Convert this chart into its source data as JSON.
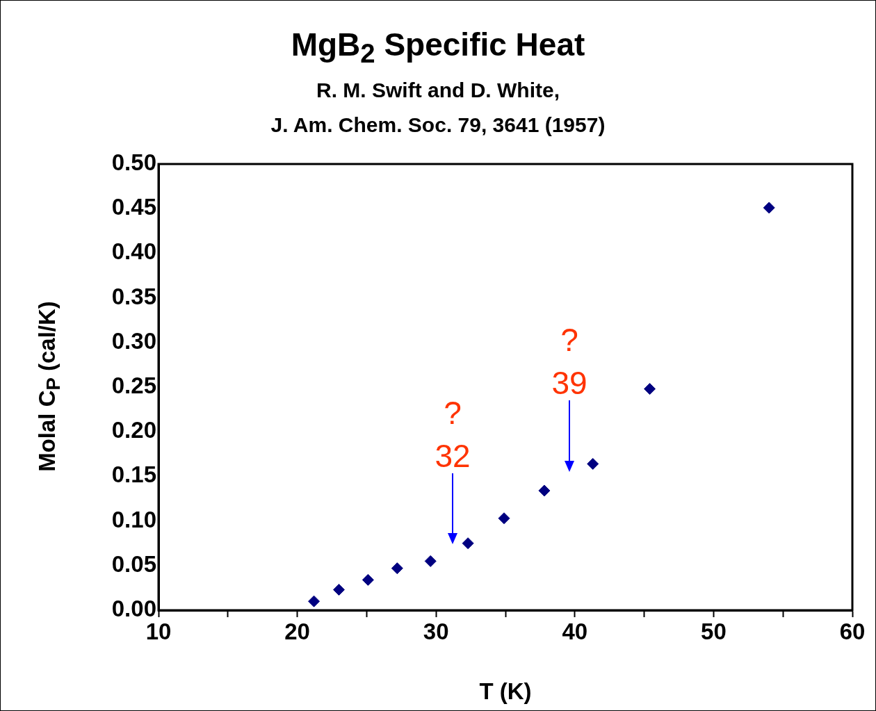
{
  "chart_data": {
    "type": "scatter",
    "title": "MgB$_{2}$ Specific Heat",
    "subtitle": "R. M. Swift and D. White,\nJ. Am. Chem. Soc. 79, 3641 (1957)",
    "xlabel": "T (K)",
    "ylabel": "Molal C$_{P}$ (cal/K)",
    "x": [
      21.2,
      23.0,
      25.1,
      27.2,
      29.6,
      32.3,
      34.9,
      37.8,
      41.3,
      45.4,
      54.0
    ],
    "series": [
      {
        "color": "#000080",
        "values": [
          0.01,
          0.023,
          0.034,
          0.047,
          0.055,
          0.075,
          0.103,
          0.134,
          0.164,
          0.248,
          0.451
        ]
      }
    ],
    "xlim": [
      10,
      60
    ],
    "xticks": [
      10,
      {
        "value": 15,
        "label": null
      },
      20,
      {
        "value": 25,
        "label": null
      },
      30,
      {
        "value": 35,
        "label": null
      },
      40,
      {
        "value": 45,
        "label": null
      },
      50,
      {
        "value": 55,
        "label": null
      },
      60
    ],
    "ylim": [
      0,
      0.5
    ],
    "yticks": [
      {
        "value": 0,
        "label": "0.00"
      },
      {
        "value": 0.05,
        "label": "0.05"
      },
      {
        "value": 0.1,
        "label": "0.10"
      },
      {
        "value": 0.15,
        "label": "0.15"
      },
      {
        "value": 0.2,
        "label": "0.20"
      },
      {
        "value": 0.25,
        "label": "0.25"
      },
      {
        "value": 0.3,
        "label": "0.30"
      },
      {
        "value": 0.35,
        "label": "0.35"
      },
      {
        "value": 0.4,
        "label": "0.40"
      },
      {
        "value": 0.45,
        "label": "0.45"
      },
      {
        "value": 0.5,
        "label": "0.50"
      }
    ],
    "annotations": [
      "?\n32",
      "?\n39"
    ],
    "grid": false,
    "legend": false,
    "marker": "diamond"
  }
}
